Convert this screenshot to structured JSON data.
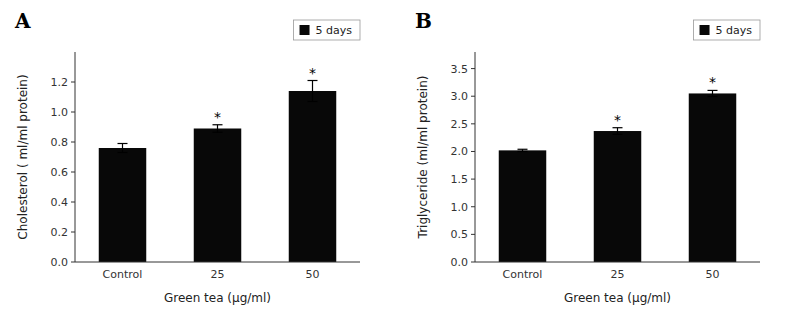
{
  "chart_data": [
    {
      "type": "bar",
      "title": "A",
      "categories": [
        "Control",
        "25",
        "50"
      ],
      "series": [
        {
          "name": "5  days",
          "color": "#080808",
          "values": [
            0.76,
            0.89,
            1.14
          ],
          "errors": [
            0.03,
            0.025,
            0.07
          ]
        }
      ],
      "ylabel": "Cholesterol ( ml/ml protein)",
      "xlabel": "Green tea (μg/ml)",
      "ylim": [
        0,
        1.4
      ],
      "yticks": [
        {
          "value": 0,
          "label": "0.0"
        },
        0.2,
        0.4,
        0.6,
        0.8,
        {
          "value": 1,
          "label": "1.0"
        },
        1.2
      ],
      "annotations": [
        {
          "text": "*",
          "x": "25"
        },
        {
          "text": "*",
          "x": "50"
        }
      ],
      "legend": "upper right",
      "grid": false
    },
    {
      "type": "bar",
      "title": "B",
      "categories": [
        "Control",
        "25",
        "50"
      ],
      "series": [
        {
          "name": "5  days",
          "color": "#080808",
          "values": [
            2.02,
            2.37,
            3.05
          ],
          "errors": [
            0.02,
            0.06,
            0.055
          ]
        }
      ],
      "ylabel": "Triglyceride (ml/ml protein)",
      "xlabel": "Green tea (μg/ml)",
      "ylim": [
        0,
        3.8
      ],
      "yticks": [
        {
          "value": 0,
          "label": "0.0"
        },
        0.5,
        {
          "value": 1,
          "label": "1.0"
        },
        1.5,
        {
          "value": 2,
          "label": "2.0"
        },
        2.5,
        {
          "value": 3,
          "label": "3.0"
        },
        3.5
      ],
      "annotations": [
        {
          "text": "*",
          "x": "25"
        },
        {
          "text": "*",
          "x": "50"
        }
      ],
      "legend": "upper right",
      "grid": false
    }
  ]
}
